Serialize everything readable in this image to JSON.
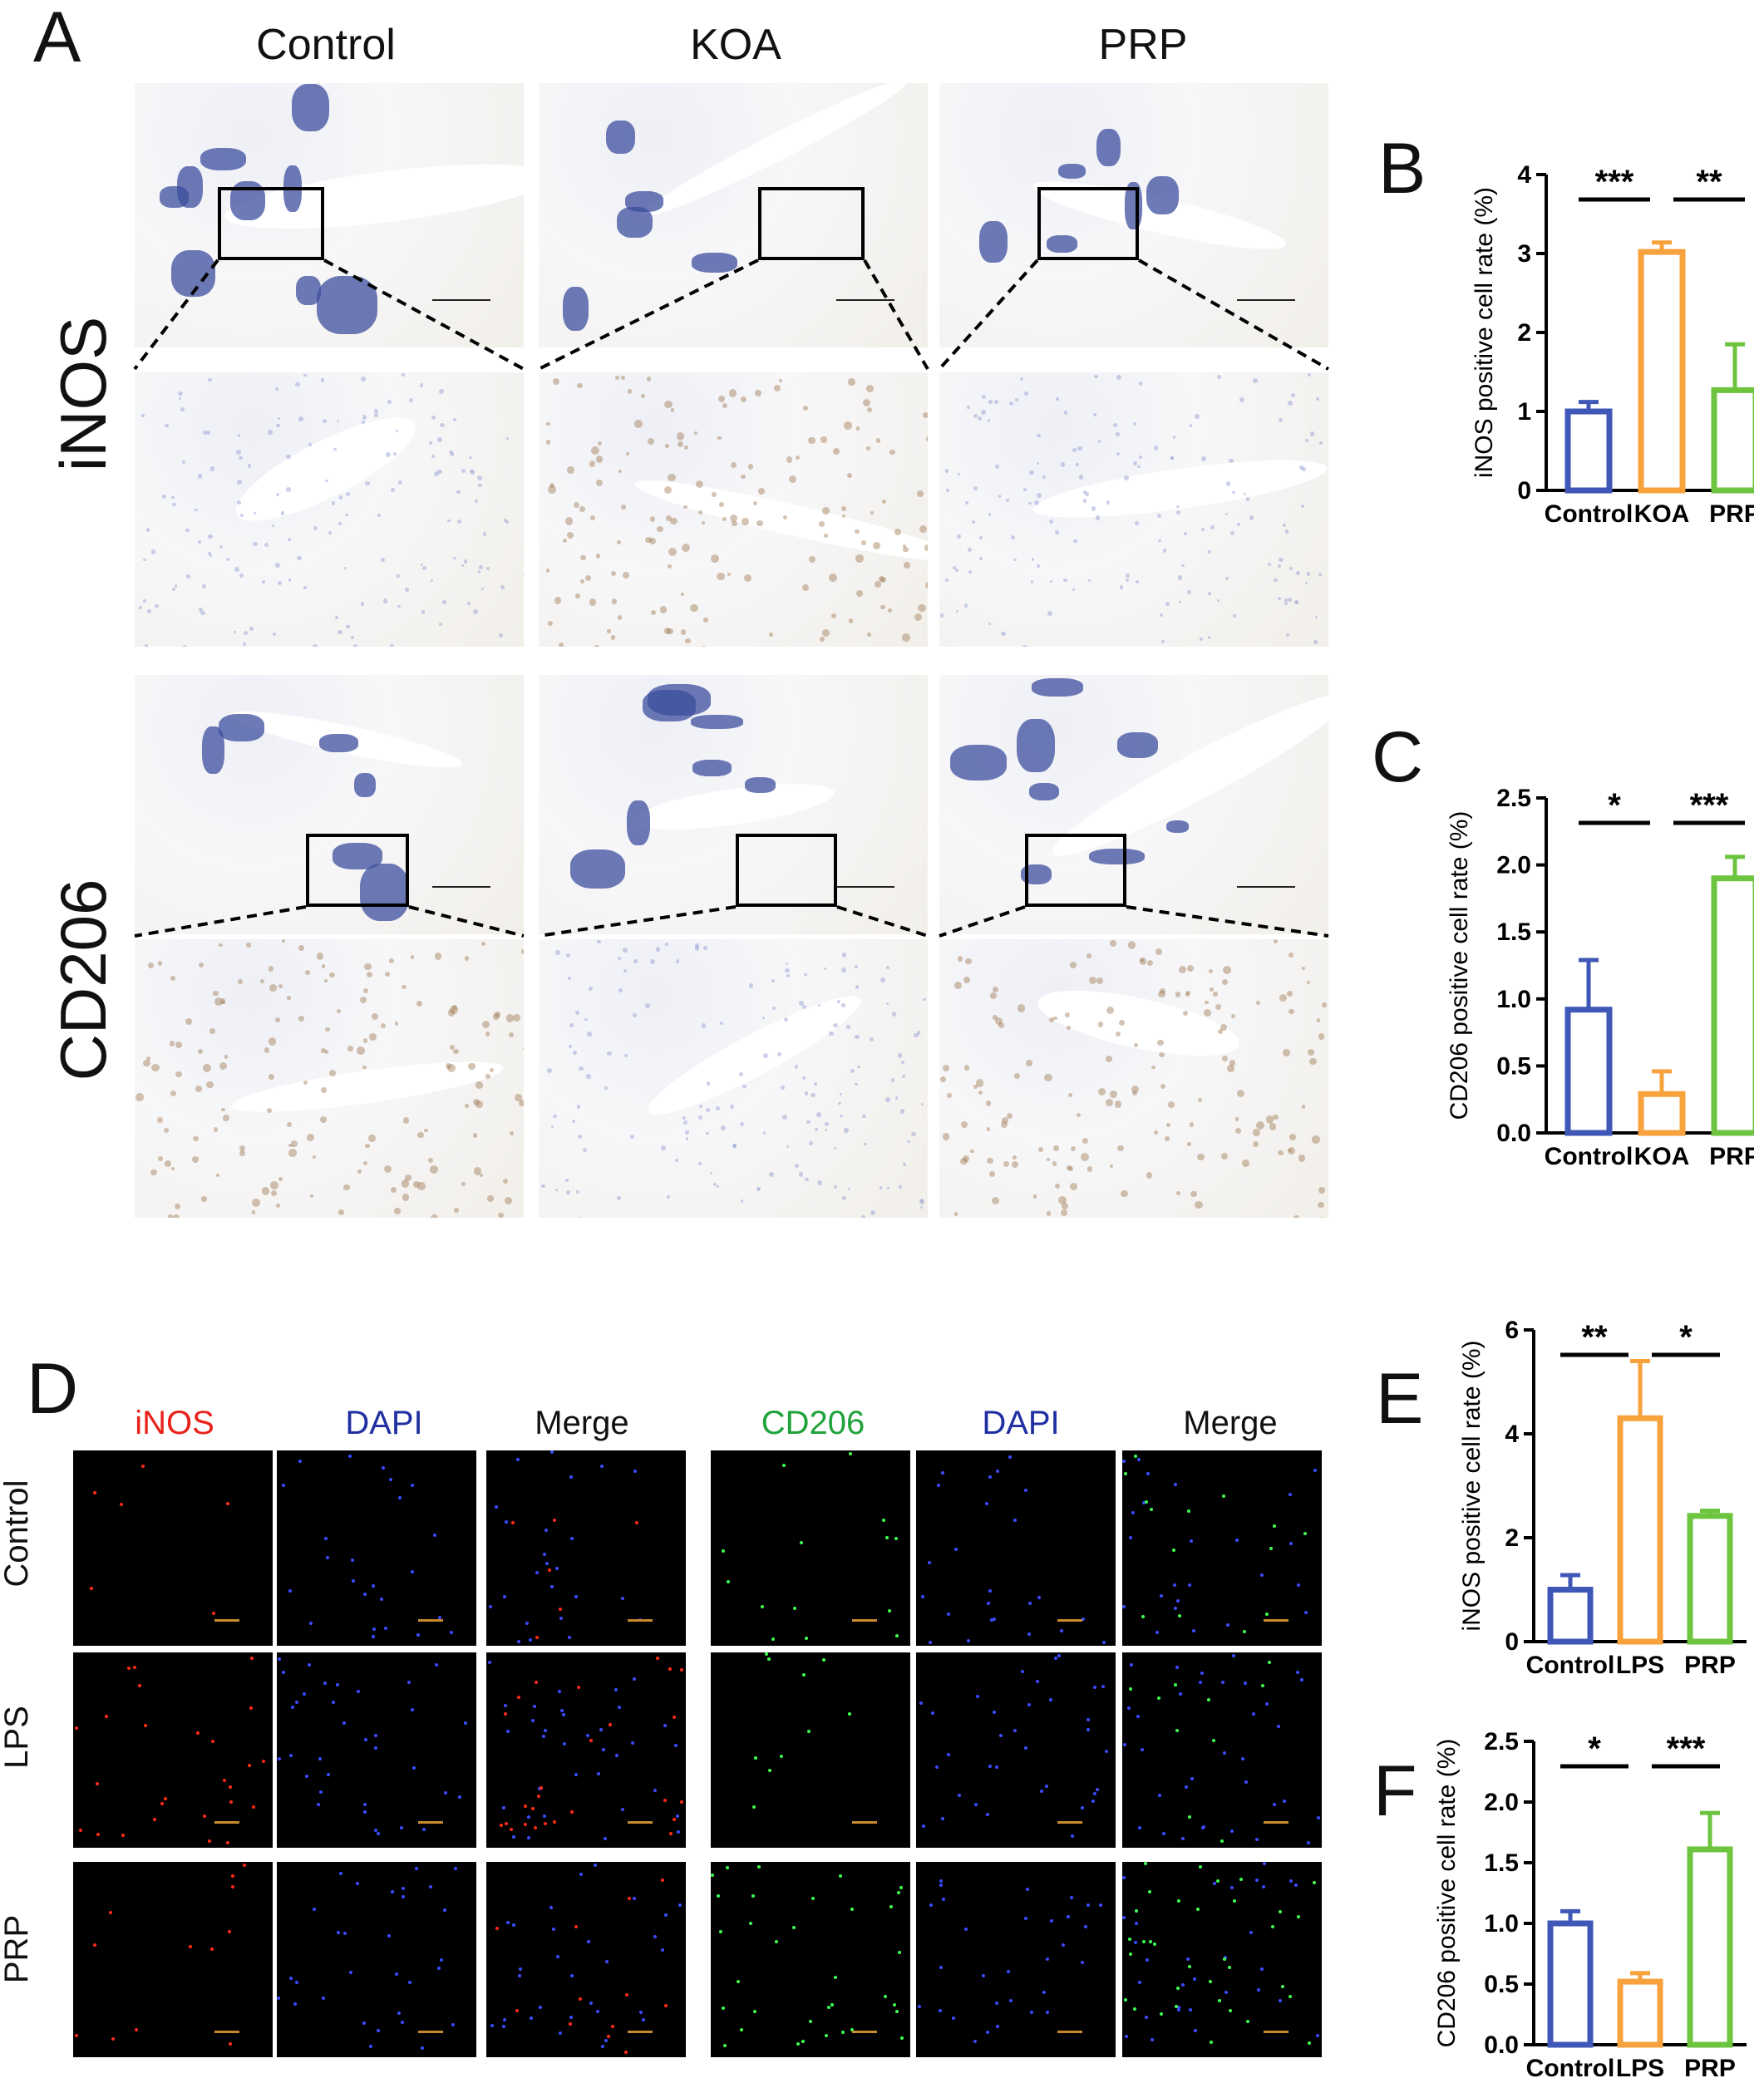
{
  "panels": {
    "A": "A",
    "B": "B",
    "C": "C",
    "D": "D",
    "E": "E",
    "F": "F"
  },
  "panel_a": {
    "columns": [
      "Control",
      "KOA",
      "PRP"
    ],
    "rows": [
      "iNOS",
      "CD206"
    ]
  },
  "panel_d": {
    "channel_titles": [
      "iNOS",
      "DAPI",
      "Merge",
      "CD206",
      "DAPI",
      "Merge"
    ],
    "channel_colors": [
      "#e8231c",
      "#1f2fa3",
      "#111111",
      "#1fa33a",
      "#1f2fa3",
      "#111111"
    ],
    "rows": [
      "Control",
      "LPS",
      "PRP"
    ]
  },
  "colors": {
    "control": "#3f57b7",
    "koa": "#f7a23c",
    "prp": "#6cc43f",
    "ihc_nuclei": "#3c4d9e",
    "ihc_dab": "#a07a55",
    "fluor_red": "#ff2a1a",
    "fluor_blue": "#3a4cff",
    "fluor_green": "#3cff50"
  },
  "chart_data": [
    {
      "id": "B",
      "type": "bar",
      "categories": [
        "Control",
        "KOA",
        "PRP"
      ],
      "values": [
        1.0,
        3.02,
        1.27
      ],
      "errors": [
        0.12,
        0.12,
        0.58
      ],
      "ylabel": "iNOS positive cell rate (%)",
      "ylim": [
        0,
        4
      ],
      "yticks": [
        "0",
        "1",
        "2",
        "3",
        "4"
      ],
      "significance": [
        {
          "from": 0,
          "to": 1,
          "label": "***"
        },
        {
          "from": 1,
          "to": 2,
          "label": "**"
        }
      ]
    },
    {
      "id": "C",
      "type": "bar",
      "categories": [
        "Control",
        "KOA",
        "PRP"
      ],
      "values": [
        0.92,
        0.29,
        1.9
      ],
      "errors": [
        0.37,
        0.17,
        0.16
      ],
      "ylabel": "CD206 positive cell rate (%)",
      "ylim": [
        0,
        2.5
      ],
      "yticks": [
        "0.0",
        "0.5",
        "1.0",
        "1.5",
        "2.0",
        "2.5"
      ],
      "significance": [
        {
          "from": 0,
          "to": 1,
          "label": "*"
        },
        {
          "from": 1,
          "to": 2,
          "label": "***"
        }
      ]
    },
    {
      "id": "E",
      "type": "bar",
      "categories": [
        "Control",
        "LPS",
        "PRP"
      ],
      "values": [
        1.0,
        4.3,
        2.42
      ],
      "errors": [
        0.28,
        1.1,
        0.1
      ],
      "ylabel": "iNOS positive cell rate (%)",
      "ylim": [
        0,
        6
      ],
      "yticks": [
        "0",
        "2",
        "4",
        "6"
      ],
      "significance": [
        {
          "from": 0,
          "to": 1,
          "label": "**"
        },
        {
          "from": 1,
          "to": 2,
          "label": "*"
        }
      ]
    },
    {
      "id": "F",
      "type": "bar",
      "categories": [
        "Control",
        "LPS",
        "PRP"
      ],
      "values": [
        1.0,
        0.52,
        1.61
      ],
      "errors": [
        0.1,
        0.07,
        0.3
      ],
      "ylabel": "CD206 positive cell rate (%)",
      "ylim": [
        0,
        2.5
      ],
      "yticks": [
        "0.0",
        "0.5",
        "1.0",
        "1.5",
        "2.0",
        "2.5"
      ],
      "significance": [
        {
          "from": 0,
          "to": 1,
          "label": "*"
        },
        {
          "from": 1,
          "to": 2,
          "label": "***"
        }
      ]
    }
  ]
}
